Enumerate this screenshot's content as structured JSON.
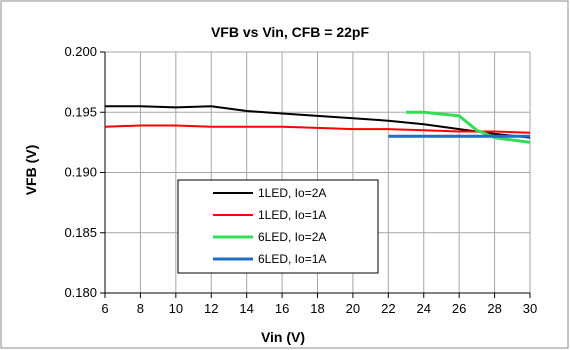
{
  "chart_data": {
    "type": "line",
    "title": "VFB vs Vin, CFB = 22pF",
    "xlabel": "Vin (V)",
    "ylabel": "VFB (V)",
    "xlim": [
      6,
      30
    ],
    "ylim": [
      0.18,
      0.2
    ],
    "xticks": [
      6,
      8,
      10,
      12,
      14,
      16,
      18,
      20,
      22,
      24,
      26,
      28,
      30
    ],
    "yticks": [
      0.18,
      0.185,
      0.19,
      0.195,
      0.2
    ],
    "ytick_labels": [
      "0.180",
      "0.185",
      "0.190",
      "0.195",
      "0.200"
    ],
    "grid": true,
    "legend_position": "bottom-center",
    "series": [
      {
        "name": "1LED, Io=2A",
        "color": "#000000",
        "x": [
          6,
          8,
          10,
          12,
          14,
          16,
          18,
          20,
          22,
          24,
          26,
          28,
          30
        ],
        "y": [
          0.1955,
          0.1955,
          0.1954,
          0.1955,
          0.1951,
          0.1949,
          0.1947,
          0.1945,
          0.1943,
          0.194,
          0.1936,
          0.1932,
          0.1929
        ]
      },
      {
        "name": "1LED, Io=1A",
        "color": "#ff0000",
        "x": [
          6,
          8,
          10,
          12,
          14,
          16,
          18,
          20,
          22,
          24,
          26,
          28,
          30
        ],
        "y": [
          0.1938,
          0.1939,
          0.1939,
          0.1938,
          0.1938,
          0.1938,
          0.1937,
          0.1936,
          0.1936,
          0.1935,
          0.1934,
          0.1934,
          0.1933
        ]
      },
      {
        "name": "6LED, Io=2A",
        "color": "#33dd55",
        "x": [
          23,
          24,
          26,
          27,
          28,
          30
        ],
        "y": [
          0.195,
          0.195,
          0.1947,
          0.1935,
          0.1929,
          0.1925
        ]
      },
      {
        "name": "6LED, Io=1A",
        "color": "#1f6fc5",
        "x": [
          22,
          24,
          26,
          28,
          30
        ],
        "y": [
          0.193,
          0.193,
          0.193,
          0.193,
          0.193
        ]
      }
    ]
  }
}
